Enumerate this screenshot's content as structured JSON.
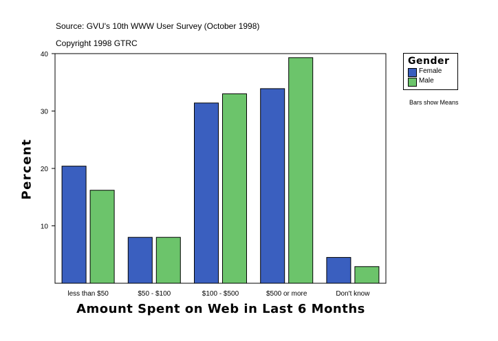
{
  "header": {
    "source": "Source: GVU's 10th WWW User Survey (October 1998)",
    "copyright": "Copyright 1998 GTRC"
  },
  "note": "Bars show Means",
  "chart_data": {
    "type": "bar",
    "title": "",
    "xlabel": "Amount Spent on Web in Last 6 Months",
    "ylabel": "Percent",
    "categories": [
      "less than $50",
      "$50 - $100",
      "$100 - $500",
      "$500 or more",
      "Don't know"
    ],
    "series": [
      {
        "name": "Female",
        "color": "#3a5fbf",
        "values": [
          20.4,
          8.0,
          31.4,
          33.9,
          4.5
        ]
      },
      {
        "name": "Male",
        "color": "#6cc46b",
        "values": [
          16.2,
          8.0,
          33.0,
          39.3,
          2.9
        ]
      }
    ],
    "ylim": [
      0,
      40
    ],
    "yticks": [
      10,
      20,
      30,
      40
    ],
    "grid": false,
    "legend": {
      "title": "Gender",
      "position": "right"
    }
  }
}
